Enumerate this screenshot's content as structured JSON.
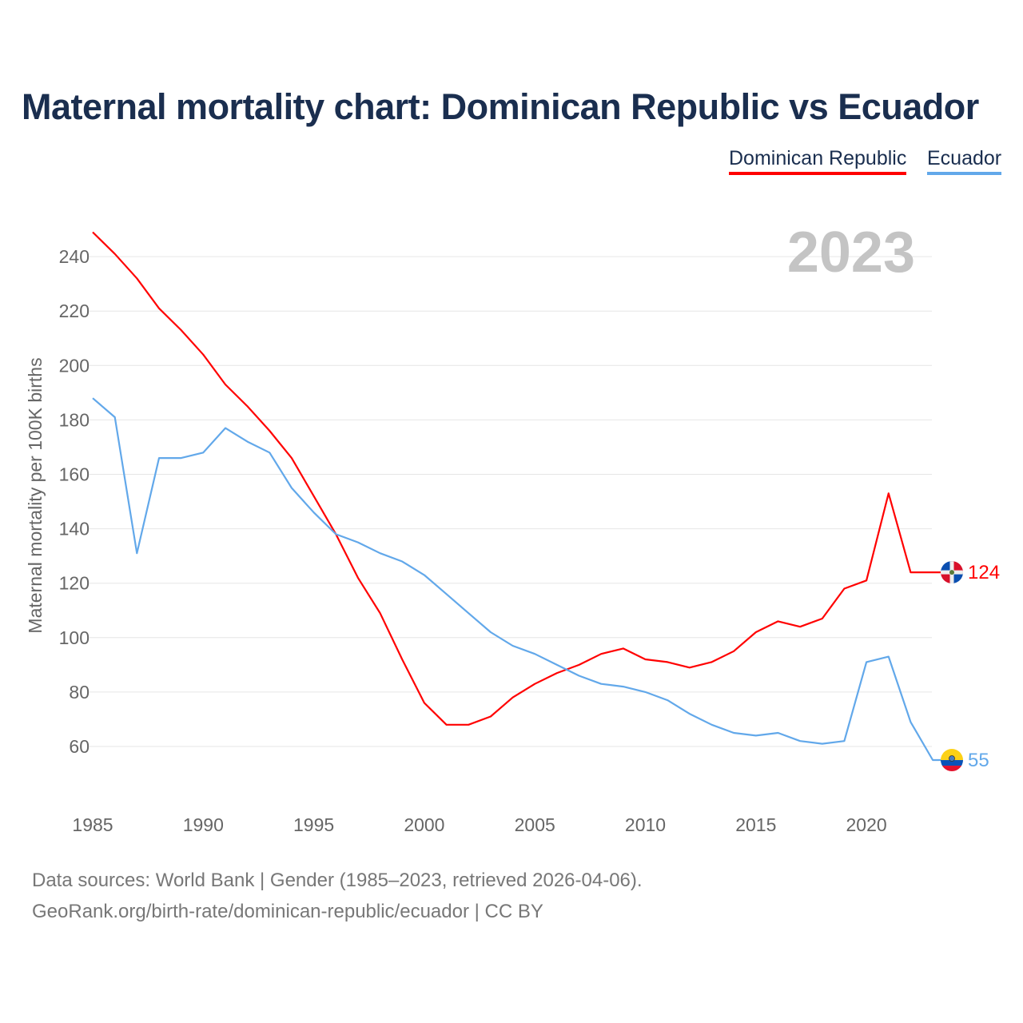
{
  "title": "Maternal mortality chart: Dominican Republic vs Ecuador",
  "year_label": "2023",
  "footer": {
    "line1": "Data sources: World Bank | Gender (1985–2023, retrieved 2026-04-06).",
    "line2": "GeoRank.org/birth-rate/dominican-republic/ecuador | CC BY"
  },
  "chart_data": {
    "type": "line",
    "title": "Maternal mortality chart: Dominican Republic vs Ecuador",
    "xlabel": "",
    "ylabel": "Maternal mortality per 100K births",
    "xlim": [
      1985,
      2023
    ],
    "ylim": [
      43,
      250
    ],
    "grid": true,
    "legend_position": "top-right",
    "x_ticks": [
      1985,
      1990,
      1995,
      2000,
      2005,
      2010,
      2015,
      2020
    ],
    "y_ticks": [
      60,
      80,
      100,
      120,
      140,
      160,
      180,
      200,
      220,
      240
    ],
    "x": [
      1985,
      1986,
      1987,
      1988,
      1989,
      1990,
      1991,
      1992,
      1993,
      1994,
      1995,
      1996,
      1997,
      1998,
      1999,
      2000,
      2001,
      2002,
      2003,
      2004,
      2005,
      2006,
      2007,
      2008,
      2009,
      2010,
      2011,
      2012,
      2013,
      2014,
      2015,
      2016,
      2017,
      2018,
      2019,
      2020,
      2021,
      2022,
      2023
    ],
    "series": [
      {
        "name": "Dominican Republic",
        "color": "#ff0000",
        "end_label": "124",
        "values": [
          249,
          241,
          232,
          221,
          213,
          204,
          193,
          185,
          176,
          166,
          152,
          138,
          122,
          109,
          92,
          76,
          68,
          68,
          71,
          78,
          83,
          87,
          90,
          94,
          96,
          92,
          91,
          89,
          91,
          95,
          102,
          106,
          104,
          107,
          118,
          121,
          153,
          124,
          124
        ]
      },
      {
        "name": "Ecuador",
        "color": "#62a8ea",
        "end_label": "55",
        "values": [
          188,
          181,
          131,
          166,
          166,
          168,
          177,
          172,
          168,
          155,
          146,
          138,
          135,
          131,
          128,
          123,
          116,
          109,
          102,
          97,
          94,
          90,
          86,
          83,
          82,
          80,
          77,
          72,
          68,
          65,
          64,
          65,
          62,
          61,
          62,
          91,
          93,
          69,
          55
        ]
      }
    ]
  }
}
